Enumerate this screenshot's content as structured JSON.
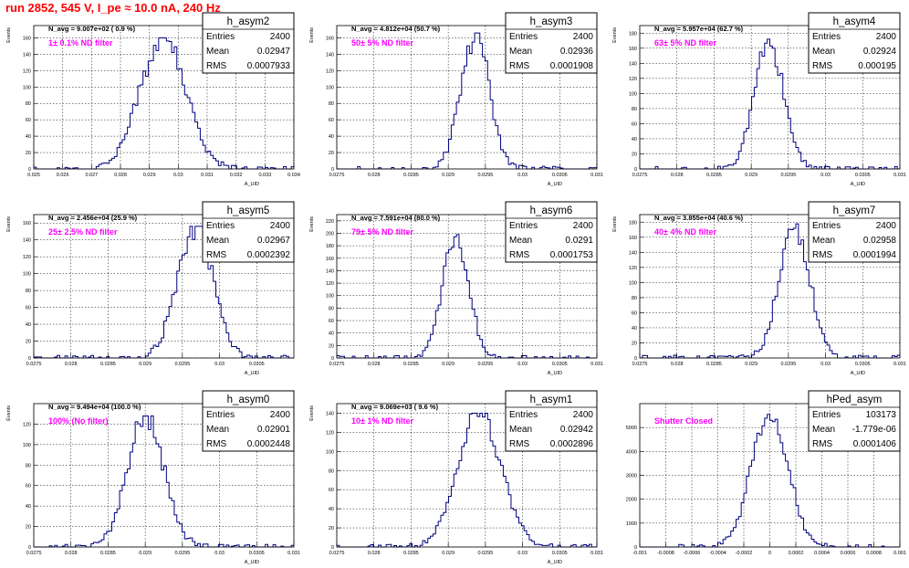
{
  "title": "run 2852,   545 V, I_pe ≈ 10.0 nA, 240 Hz",
  "colors": {
    "title": "#ff0000",
    "histogram": "#000080",
    "filter_label": "#ff00ff"
  },
  "chart_data": [
    {
      "type": "bar",
      "name": "h_asym2",
      "nav": "N_avg = 9.007e+02 ( 0.9 %)",
      "filter": "1± 0.1% ND filter",
      "stats": {
        "entries": "2400",
        "mean": "0.02947",
        "rms": "0.0007933"
      },
      "xlabel": "A_UID",
      "ylabel": "Events",
      "xlim": [
        0.025,
        0.034
      ],
      "ylim": [
        0,
        175
      ],
      "xticks": [
        0.025,
        0.026,
        0.027,
        0.028,
        0.029,
        0.03,
        0.031,
        0.032,
        0.033,
        0.034
      ],
      "xtick_labels": [
        "0.025",
        "0.026",
        "0.027",
        "0.028",
        "0.029",
        "0.03",
        "0.031",
        "0.032",
        "0.033",
        "0.034"
      ],
      "yticks": [
        0,
        20,
        40,
        60,
        80,
        100,
        120,
        140,
        160
      ],
      "mean": 0.02947,
      "sigma": 0.000793,
      "peak": 160,
      "grid": true
    },
    {
      "type": "bar",
      "name": "h_asym3",
      "nav": "N_avg = 4.812e+04 (50.7 %)",
      "filter": "50± 5% ND filter",
      "stats": {
        "entries": "2400",
        "mean": "0.02936",
        "rms": "0.0001908"
      },
      "xlabel": "A_UID",
      "ylabel": "Events",
      "xlim": [
        0.0275,
        0.031
      ],
      "ylim": [
        0,
        175
      ],
      "xticks": [
        0.0275,
        0.028,
        0.0285,
        0.029,
        0.0295,
        0.03,
        0.0305,
        0.031
      ],
      "xtick_labels": [
        "0.0275",
        "0.028",
        "0.0285",
        "0.029",
        "0.0295",
        "0.03",
        "0.0305",
        "0.031"
      ],
      "yticks": [
        0,
        20,
        40,
        60,
        80,
        100,
        120,
        140,
        160
      ],
      "mean": 0.02936,
      "sigma": 0.000191,
      "peak": 166,
      "grid": true
    },
    {
      "type": "bar",
      "name": "h_asym4",
      "nav": "N_avg = 5.957e+04 (62.7 %)",
      "filter": "63± 5% ND filter",
      "stats": {
        "entries": "2400",
        "mean": "0.02924",
        "rms": "0.000195"
      },
      "xlabel": "A_UID",
      "ylabel": "Events",
      "xlim": [
        0.0275,
        0.031
      ],
      "ylim": [
        0,
        190
      ],
      "xticks": [
        0.0275,
        0.028,
        0.0285,
        0.029,
        0.0295,
        0.03,
        0.0305,
        0.031
      ],
      "xtick_labels": [
        "0.0275",
        "0.028",
        "0.0285",
        "0.029",
        "0.0295",
        "0.03",
        "0.0305",
        "0.031"
      ],
      "yticks": [
        0,
        20,
        40,
        60,
        80,
        100,
        120,
        140,
        160,
        180
      ],
      "mean": 0.02924,
      "sigma": 0.000195,
      "peak": 172,
      "grid": true
    },
    {
      "type": "bar",
      "name": "h_asym5",
      "nav": "N_avg = 2.456e+04 (25.9 %)",
      "filter": "25± 2.5% ND filter",
      "stats": {
        "entries": "2400",
        "mean": "0.02967",
        "rms": "0.0002392"
      },
      "xlabel": "A_UID",
      "ylabel": "Events",
      "xlim": [
        0.0275,
        0.031
      ],
      "ylim": [
        0,
        170
      ],
      "xticks": [
        0.0275,
        0.028,
        0.0285,
        0.029,
        0.0295,
        0.03,
        0.0305
      ],
      "xtick_labels": [
        "0.0275",
        "0.028",
        "0.0285",
        "0.029",
        "0.0295",
        "0.03",
        "0.0305"
      ],
      "yticks": [
        0,
        20,
        40,
        60,
        80,
        100,
        120,
        140,
        160
      ],
      "mean": 0.02967,
      "sigma": 0.000239,
      "peak": 156,
      "grid": true
    },
    {
      "type": "bar",
      "name": "h_asym6",
      "nav": "N_avg = 7.591e+04 (80.0 %)",
      "filter": "79± 5% ND filter",
      "stats": {
        "entries": "2400",
        "mean": "0.0291",
        "rms": "0.0001753"
      },
      "xlabel": "A_UID",
      "ylabel": "Events",
      "xlim": [
        0.0275,
        0.031
      ],
      "ylim": [
        0,
        230
      ],
      "xticks": [
        0.0275,
        0.028,
        0.0285,
        0.029,
        0.0295,
        0.03,
        0.0305,
        0.031
      ],
      "xtick_labels": [
        "0.0275",
        "0.028",
        "0.0285",
        "0.029",
        "0.0295",
        "0.03",
        "0.0305",
        "0.031"
      ],
      "yticks": [
        0,
        20,
        40,
        60,
        80,
        100,
        120,
        140,
        160,
        180,
        200,
        220
      ],
      "mean": 0.0291,
      "sigma": 0.000175,
      "peak": 198,
      "grid": true
    },
    {
      "type": "bar",
      "name": "h_asym7",
      "nav": "N_avg = 3.855e+04 (40.6 %)",
      "filter": "40± 4% ND filter",
      "stats": {
        "entries": "2400",
        "mean": "0.02958",
        "rms": "0.0001994"
      },
      "xlabel": "A_UID",
      "ylabel": "Events",
      "xlim": [
        0.0275,
        0.031
      ],
      "ylim": [
        0,
        190
      ],
      "xticks": [
        0.0275,
        0.028,
        0.0285,
        0.029,
        0.0295,
        0.03,
        0.0305,
        0.031
      ],
      "xtick_labels": [
        "0.0275",
        "0.028",
        "0.0285",
        "0.029",
        "0.0295",
        "0.03",
        "0.0305",
        "0.031"
      ],
      "yticks": [
        0,
        20,
        40,
        60,
        80,
        100,
        120,
        140,
        160,
        180
      ],
      "mean": 0.02958,
      "sigma": 0.000199,
      "peak": 180,
      "grid": true
    },
    {
      "type": "bar",
      "name": "h_asym0",
      "nav": "N_avg = 9.494e+04 (100.0 %)",
      "filter": "100% (No filter)",
      "stats": {
        "entries": "2400",
        "mean": "0.02901",
        "rms": "0.0002448"
      },
      "xlabel": "A_UID",
      "ylabel": "Events",
      "xlim": [
        0.0275,
        0.031
      ],
      "ylim": [
        0,
        140
      ],
      "xticks": [
        0.0275,
        0.028,
        0.0285,
        0.029,
        0.0295,
        0.03,
        0.0305,
        0.031
      ],
      "xtick_labels": [
        "0.0275",
        "0.028",
        "0.0285",
        "0.029",
        "0.0295",
        "0.03",
        "0.0305",
        "0.031"
      ],
      "yticks": [
        0,
        20,
        40,
        60,
        80,
        100,
        120
      ],
      "mean": 0.02901,
      "sigma": 0.000245,
      "peak": 128,
      "grid": true
    },
    {
      "type": "bar",
      "name": "h_asym1",
      "nav": "N_avg = 9.069e+03 ( 9.6 %)",
      "filter": "10± 1% ND filter",
      "stats": {
        "entries": "2400",
        "mean": "0.02942",
        "rms": "0.0002896"
      },
      "xlabel": "A_UID",
      "ylabel": "Events",
      "xlim": [
        0.0275,
        0.031
      ],
      "ylim": [
        0,
        150
      ],
      "xticks": [
        0.0275,
        0.028,
        0.0285,
        0.029,
        0.0295,
        0.03,
        0.0305,
        0.031
      ],
      "xtick_labels": [
        "0.0275",
        "0.028",
        "0.0285",
        "0.029",
        "0.0295",
        "0.03",
        "0.0305",
        "0.031"
      ],
      "yticks": [
        0,
        20,
        40,
        60,
        80,
        100,
        120,
        140
      ],
      "mean": 0.02942,
      "sigma": 0.00029,
      "peak": 140,
      "grid": true
    },
    {
      "type": "bar",
      "name": "hPed_asym",
      "nav": "",
      "filter": "Shutter Closed",
      "stats": {
        "entries": "103173",
        "mean": "-1.779e-06",
        "rms": "0.0001406"
      },
      "xlabel": "",
      "ylabel": "",
      "xlim": [
        -0.001,
        0.001
      ],
      "ylim": [
        0,
        6000
      ],
      "xticks": [
        -0.001,
        -0.0008,
        -0.0006,
        -0.0004,
        -0.0002,
        0,
        0.0002,
        0.0004,
        0.0006,
        0.0008,
        0.001
      ],
      "xtick_labels": [
        "-0.001",
        "-0.0008",
        "-0.0006",
        "-0.0004",
        "-0.0002",
        "0",
        "0.0002",
        "0.0004",
        "0.0006",
        "0.0008",
        "0.001"
      ],
      "yticks": [
        0,
        1000,
        2000,
        3000,
        4000,
        5000
      ],
      "mean": -1.8e-06,
      "sigma": 0.000141,
      "peak": 5550,
      "grid": true
    }
  ]
}
